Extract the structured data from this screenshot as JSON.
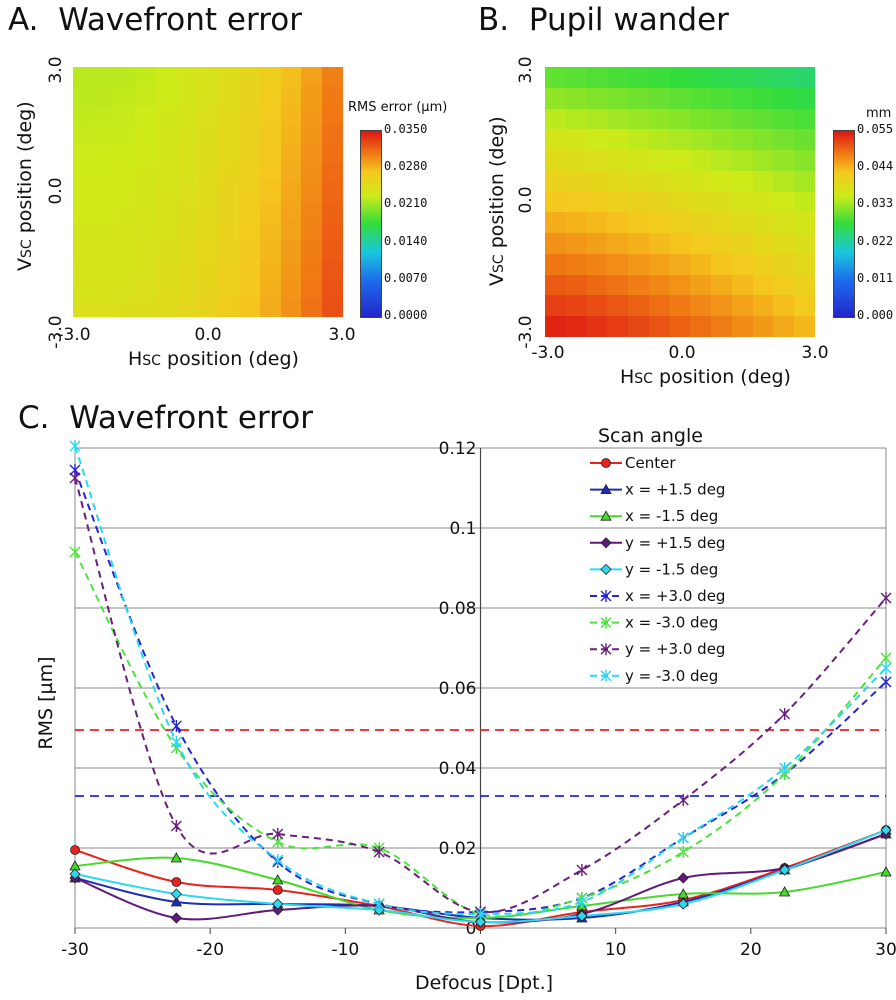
{
  "chart_data": [
    {
      "type": "heatmap",
      "panel": "A.",
      "title": "Wavefront error",
      "xlabel_prefix": "H",
      "xlabel_sub": "SC",
      "xlabel_rest": " position (deg)",
      "ylabel_prefix": "V",
      "ylabel_sub": "SC",
      "ylabel_rest": " position (deg)",
      "xticks": [
        "-3.0",
        "0.0",
        "3.0"
      ],
      "yticks": [
        "3.0",
        "0.0",
        "-3.0"
      ],
      "xlim": [
        -3.0,
        3.0
      ],
      "ylim": [
        -3.0,
        3.0
      ],
      "colorbar": {
        "title": "RMS error (µm)",
        "ticks": [
          "0.0350",
          "0.0280",
          "0.0210",
          "0.0140",
          "0.0070",
          "0.0000"
        ],
        "range": [
          0.0,
          0.035
        ]
      },
      "value_model": {
        "base": 0.022,
        "gain_x": 0.0085,
        "gain_x_low_y": 0.002
      }
    },
    {
      "type": "heatmap",
      "panel": "B.",
      "title": "Pupil wander",
      "xlabel_prefix": "H",
      "xlabel_sub": "SC",
      "xlabel_rest": " position (deg)",
      "ylabel_prefix": "V",
      "ylabel_sub": "SC",
      "ylabel_rest": " position (deg)",
      "xticks": [
        "-3.0",
        "0.0",
        "3.0"
      ],
      "yticks": [
        "3.0",
        "0.0",
        "-3.0"
      ],
      "xlim": [
        -3.0,
        3.0
      ],
      "ylim": [
        -3.0,
        3.0
      ],
      "colorbar": {
        "title": "mm",
        "ticks": [
          "0.055",
          "0.044",
          "0.033",
          "0.022",
          "0.011",
          "0.000"
        ],
        "range": [
          0.0,
          0.055
        ]
      },
      "value_model": {
        "low_corner": 0.054,
        "top_right": 0.025,
        "top_left": 0.03
      }
    },
    {
      "type": "line",
      "panel": "C.",
      "title": "Wavefront error",
      "xlabel": "Defocus [Dpt.]",
      "ylabel": "RMS [µm]",
      "legend_title": "Scan angle",
      "legend_position": "top-right",
      "xlim": [
        -30,
        30
      ],
      "ylim": [
        0,
        0.12
      ],
      "xticks": [
        -30,
        -20,
        -10,
        0,
        10,
        20,
        30
      ],
      "yticks": [
        0,
        0.02,
        0.04,
        0.06,
        0.08,
        0.1,
        0.12
      ],
      "ytick_labels": [
        "0",
        "0.02",
        "0.04",
        "0.06",
        "0.08",
        "0.1",
        "0.12"
      ],
      "grid": true,
      "x": [
        -30,
        -22.5,
        -15,
        -7.5,
        0,
        7.5,
        15,
        22.5,
        30
      ],
      "hlines": [
        {
          "y": 0.0495,
          "color": "#ee1c25"
        },
        {
          "y": 0.033,
          "color": "#1a2bd6"
        }
      ],
      "series": [
        {
          "name": "Center",
          "values": [
            0.0195,
            0.0115,
            0.0095,
            0.0055,
            0.0005,
            0.004,
            0.007,
            0.015,
            0.0245
          ],
          "color": "#e8231e",
          "dash": false,
          "marker": "circle"
        },
        {
          "name": "x = +1.5 deg",
          "values": [
            0.0125,
            0.0065,
            0.006,
            0.0055,
            0.0025,
            0.0025,
            0.0065,
            0.0145,
            0.0235
          ],
          "color": "#1c2fb4",
          "dash": false,
          "marker": "triangle"
        },
        {
          "name": "x = -1.5 deg",
          "values": [
            0.0155,
            0.0175,
            0.012,
            0.0045,
            0.0025,
            0.0055,
            0.0085,
            0.009,
            0.014
          ],
          "color": "#46d82a",
          "dash": false,
          "marker": "triangle"
        },
        {
          "name": "y = +1.5 deg",
          "values": [
            0.0125,
            0.0025,
            0.0045,
            0.0055,
            0.0015,
            0.0035,
            0.0125,
            0.015,
            0.0235
          ],
          "color": "#621a7a",
          "dash": false,
          "marker": "diamond"
        },
        {
          "name": "y = -1.5 deg",
          "values": [
            0.0135,
            0.0085,
            0.006,
            0.0045,
            0.0015,
            0.003,
            0.006,
            0.0145,
            0.0245
          ],
          "color": "#2cd9ee",
          "dash": false,
          "marker": "diamond"
        },
        {
          "name": "x = +3.0 deg",
          "values": [
            0.1145,
            0.0505,
            0.0165,
            0.006,
            0.004,
            0.0075,
            0.0225,
            0.0385,
            0.0615
          ],
          "color": "#2326d2",
          "dash": true,
          "marker": "star"
        },
        {
          "name": "x = -3.0 deg",
          "values": [
            0.094,
            0.045,
            0.0215,
            0.02,
            0.0035,
            0.0075,
            0.019,
            0.0385,
            0.0675
          ],
          "color": "#4ce43c",
          "dash": true,
          "marker": "star"
        },
        {
          "name": "y = +3.0 deg",
          "values": [
            0.1125,
            0.0255,
            0.0235,
            0.019,
            0.004,
            0.0145,
            0.032,
            0.0535,
            0.0825
          ],
          "color": "#6a1f7c",
          "dash": true,
          "marker": "star"
        },
        {
          "name": "y = -3.0 deg",
          "values": [
            0.1205,
            0.0465,
            0.017,
            0.006,
            0.0035,
            0.0065,
            0.0225,
            0.04,
            0.065
          ],
          "color": "#27d8f4",
          "dash": true,
          "marker": "star"
        }
      ]
    }
  ]
}
